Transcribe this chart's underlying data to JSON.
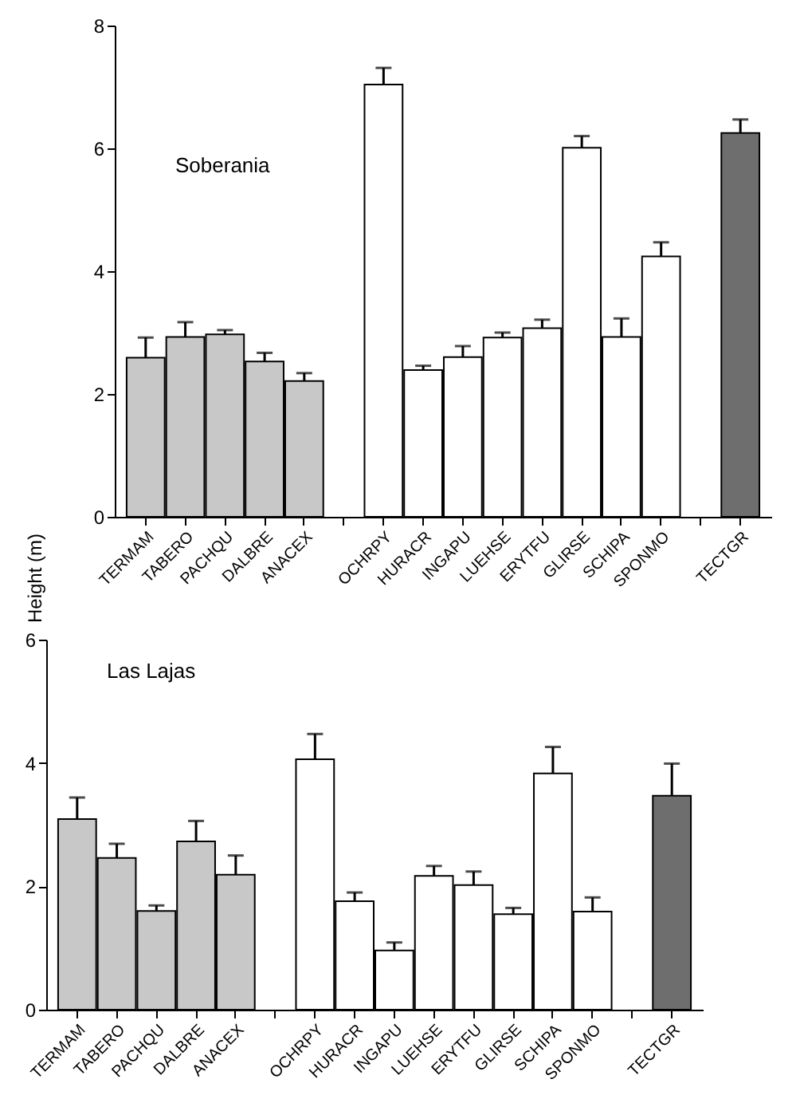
{
  "chart_data": [
    {
      "type": "bar",
      "ylabel": "Height (m)",
      "annotations": [
        "Soberania"
      ],
      "categories": [
        "TERMAM",
        "TABERO",
        "PACHQU",
        "DALBRE",
        "ANACEX",
        null,
        "OCHRPY",
        "HURACR",
        "INGAPU",
        "LUEHSE",
        "ERYTFU",
        "GLIRSE",
        "SCHIPA",
        "SPONMO",
        null,
        "TECTGR"
      ],
      "values": [
        2.59,
        2.93,
        2.97,
        2.53,
        2.21,
        null,
        7.04,
        2.39,
        2.6,
        2.92,
        3.07,
        6.01,
        2.93,
        4.24,
        null,
        6.25
      ],
      "errors": [
        [
          2.59,
          2.92
        ],
        [
          2.93,
          3.17
        ],
        [
          2.97,
          3.04
        ],
        [
          2.53,
          2.67
        ],
        [
          2.21,
          2.34
        ],
        null,
        [
          7.04,
          7.31
        ],
        [
          2.39,
          2.46
        ],
        [
          2.6,
          2.78
        ],
        [
          2.92,
          3.0
        ],
        [
          3.07,
          3.21
        ],
        [
          6.01,
          6.2
        ],
        [
          2.93,
          3.23
        ],
        [
          4.24,
          4.47
        ],
        null,
        [
          6.25,
          6.47
        ]
      ],
      "colors": [
        "#c8c8c8",
        "#c8c8c8",
        "#c8c8c8",
        "#c8c8c8",
        "#c8c8c8",
        null,
        "#ffffff",
        "#ffffff",
        "#ffffff",
        "#ffffff",
        "#ffffff",
        "#ffffff",
        "#ffffff",
        "#ffffff",
        null,
        "#6e6e6e"
      ],
      "ylim": [
        0,
        8
      ],
      "yticks": [
        0,
        2,
        4,
        6,
        8
      ],
      "grid": false
    },
    {
      "type": "bar",
      "annotations": [
        "Las Lajas"
      ],
      "categories": [
        "TERMAM",
        "TABERO",
        "PACHQU",
        "DALBRE",
        "ANACEX",
        null,
        "OCHRPY",
        "HURACR",
        "INGAPU",
        "LUEHSE",
        "ERYTFU",
        "GLIRSE",
        "SCHIPA",
        "SPONMO",
        null,
        "TECTGR"
      ],
      "values": [
        3.09,
        2.46,
        1.6,
        2.73,
        2.19,
        null,
        4.06,
        1.76,
        0.96,
        2.17,
        2.02,
        1.55,
        3.83,
        1.59,
        null,
        3.47
      ],
      "errors": [
        [
          3.09,
          3.44
        ],
        [
          2.46,
          2.69
        ],
        [
          1.6,
          1.69
        ],
        [
          2.73,
          3.06
        ],
        [
          2.19,
          2.5
        ],
        null,
        [
          4.06,
          4.47
        ],
        [
          1.76,
          1.9
        ],
        [
          0.96,
          1.09
        ],
        [
          2.17,
          2.33
        ],
        [
          2.02,
          2.24
        ],
        [
          1.55,
          1.65
        ],
        [
          3.83,
          4.26
        ],
        [
          1.59,
          1.82
        ],
        null,
        [
          3.47,
          3.99
        ]
      ],
      "colors": [
        "#c8c8c8",
        "#c8c8c8",
        "#c8c8c8",
        "#c8c8c8",
        "#c8c8c8",
        null,
        "#ffffff",
        "#ffffff",
        "#ffffff",
        "#ffffff",
        "#ffffff",
        "#ffffff",
        "#ffffff",
        "#ffffff",
        null,
        "#6e6e6e"
      ],
      "ylim": [
        0,
        6
      ],
      "yticks": [
        0,
        2,
        4,
        6
      ],
      "grid": false
    }
  ]
}
